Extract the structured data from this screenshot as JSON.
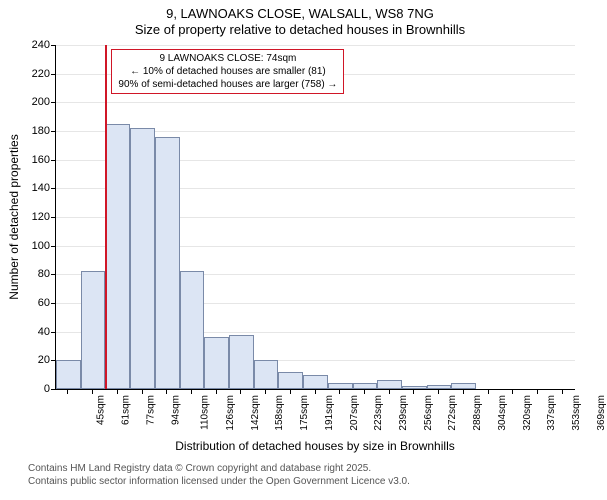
{
  "title": {
    "main": "9, LAWNOAKS CLOSE, WALSALL, WS8 7NG",
    "sub": "Size of property relative to detached houses in Brownhills"
  },
  "chart": {
    "type": "histogram",
    "y_axis": {
      "label": "Number of detached properties",
      "min": 0,
      "max": 240,
      "ticks": [
        0,
        20,
        40,
        60,
        80,
        100,
        120,
        140,
        160,
        180,
        200,
        220,
        240
      ],
      "grid_color": "#e6e6e6"
    },
    "x_axis": {
      "label": "Distribution of detached houses by size in Brownhills",
      "tick_labels": [
        "45sqm",
        "61sqm",
        "77sqm",
        "94sqm",
        "110sqm",
        "126sqm",
        "142sqm",
        "158sqm",
        "175sqm",
        "191sqm",
        "207sqm",
        "223sqm",
        "239sqm",
        "256sqm",
        "272sqm",
        "288sqm",
        "304sqm",
        "320sqm",
        "337sqm",
        "353sqm",
        "369sqm"
      ]
    },
    "bars": {
      "values": [
        20,
        82,
        185,
        182,
        176,
        82,
        36,
        38,
        20,
        12,
        10,
        4,
        4,
        6,
        2,
        3,
        4,
        0,
        0,
        0,
        0
      ],
      "fill_color": "#dce5f4",
      "border_color": "#7a8aa8"
    },
    "marker": {
      "color": "#d01627",
      "at_tick_index": 2
    },
    "annotation": {
      "line1": "9 LAWNOAKS CLOSE: 74sqm",
      "line2": "← 10% of detached houses are smaller (81)",
      "line3": "90% of semi-detached houses are larger (758) →",
      "border_color": "#d01627"
    },
    "background_color": "#ffffff"
  },
  "footer": {
    "line1": "Contains HM Land Registry data © Crown copyright and database right 2025.",
    "line2": "Contains public sector information licensed under the Open Government Licence v3.0."
  }
}
